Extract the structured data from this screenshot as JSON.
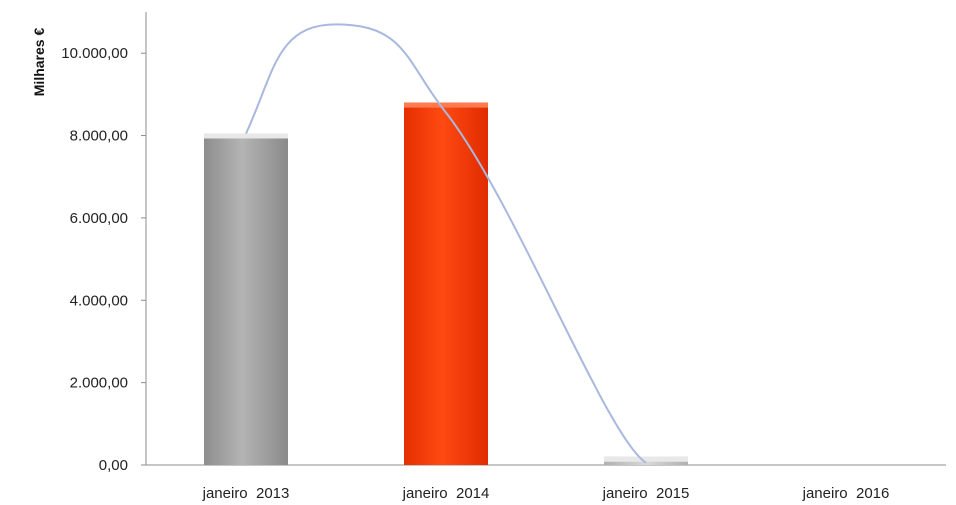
{
  "chart_data": {
    "type": "bar",
    "categories": [
      "janeiro  2013",
      "janeiro  2014",
      "janeiro  2015",
      "janeiro  2016"
    ],
    "values": [
      8050,
      8800,
      200,
      0
    ],
    "bar_colors": [
      "#a3a3a3",
      "#ff3a0a",
      "#c7c7c7",
      "#c7c7c7"
    ],
    "ylabel": "Milhares €",
    "xlabel": "",
    "ylim": [
      0,
      11000
    ],
    "yticks": [
      0,
      2000,
      4000,
      6000,
      8000,
      10000
    ],
    "ytick_labels": [
      "0,00",
      "2.000,00",
      "4.000,00",
      "6.000,00",
      "8.000,00",
      "10.000,00"
    ],
    "grid": false,
    "trend_line": {
      "color": "#a9b8dd",
      "type": "smooth-curve"
    }
  }
}
